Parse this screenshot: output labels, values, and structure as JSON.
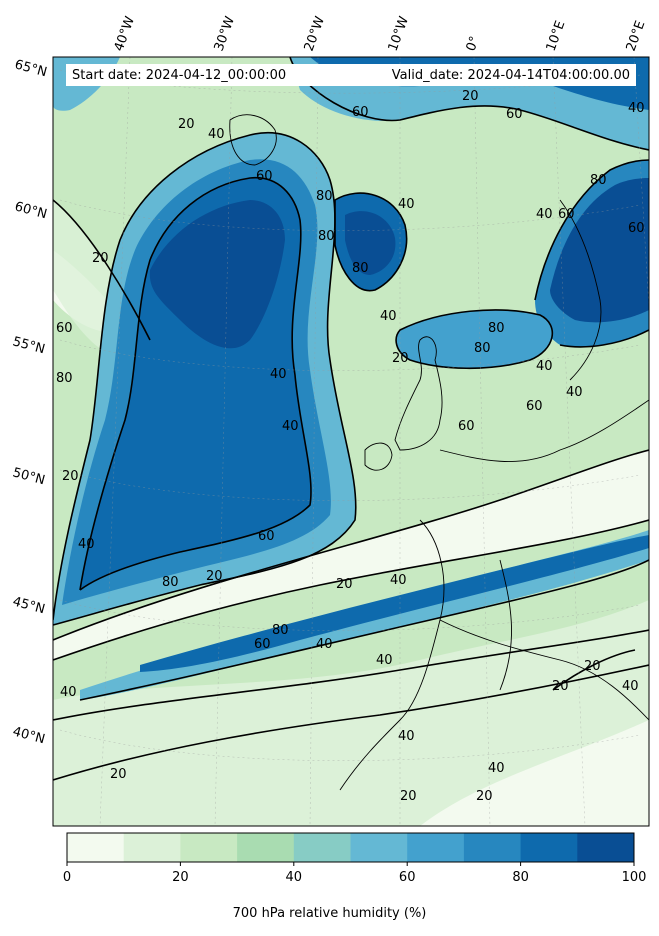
{
  "header": {
    "start_date": "Start date: 2024-04-12_00:00:00",
    "valid_date": "Valid_date: 2024-04-14T04:00:00.00"
  },
  "longitude_labels": [
    "40°W",
    "30°W",
    "20°W",
    "10°W",
    "0°",
    "10°E",
    "20°E"
  ],
  "latitude_labels": [
    "65°N",
    "60°N",
    "55°N",
    "50°N",
    "45°N",
    "40°N"
  ],
  "contour_labels": [
    "20",
    "40",
    "60",
    "80"
  ],
  "colorbar": {
    "title": "700 hPa relative humidity (%)",
    "ticks": [
      "0",
      "20",
      "40",
      "60",
      "80",
      "100"
    ],
    "colors": [
      "#f3faef",
      "#dcf1d8",
      "#c8e9c2",
      "#a9dcb1",
      "#87ccc5",
      "#64b8d4",
      "#43a1ce",
      "#2787bf",
      "#0e6aad",
      "#094e94"
    ]
  },
  "map_colors": {
    "water_dry": "#dcf1d8",
    "very_dry": "#f3faef"
  }
}
